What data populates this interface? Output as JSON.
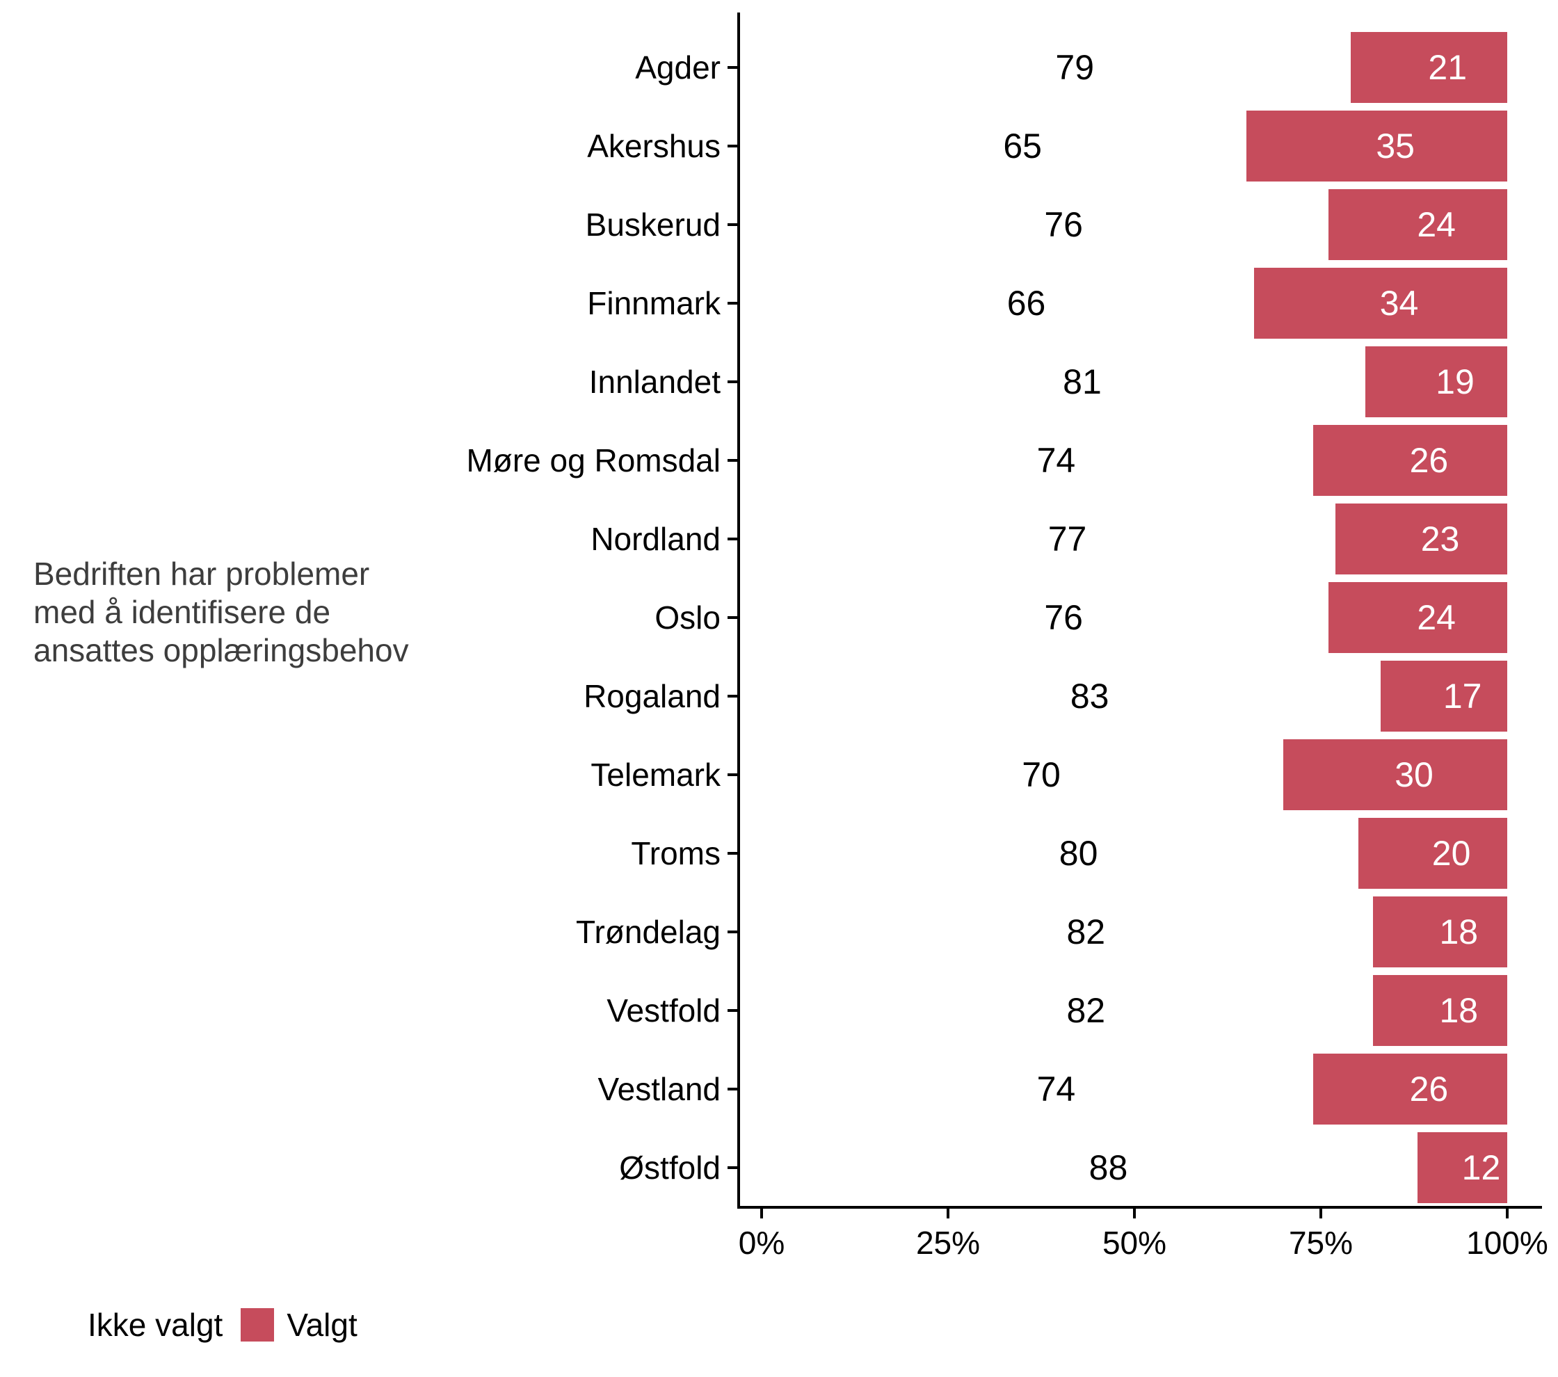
{
  "chart_data": {
    "type": "bar",
    "orientation": "horizontal",
    "stacked": true,
    "unit": "percent",
    "y_axis_title": "Bedriften har problemer\nmed å identifisere de\nansattes opplæringsbehov",
    "categories": [
      "Agder",
      "Akershus",
      "Buskerud",
      "Finnmark",
      "Innlandet",
      "Møre og Romsdal",
      "Nordland",
      "Oslo",
      "Rogaland",
      "Telemark",
      "Troms",
      "Trøndelag",
      "Vestfold",
      "Vestland",
      "Østfold"
    ],
    "series": [
      {
        "name": "Ikke valgt",
        "color": "#ffffff",
        "label_color": "#000000",
        "values": [
          79,
          65,
          76,
          66,
          81,
          74,
          77,
          76,
          83,
          70,
          80,
          82,
          82,
          74,
          88
        ]
      },
      {
        "name": "Valgt",
        "color": "#c64c5c",
        "label_color": "#ffffff",
        "values": [
          21,
          35,
          24,
          34,
          19,
          26,
          23,
          24,
          17,
          30,
          20,
          18,
          18,
          26,
          12
        ]
      }
    ],
    "x_ticks": [
      {
        "value": 0,
        "label": "0%"
      },
      {
        "value": 25,
        "label": "25%"
      },
      {
        "value": 50,
        "label": "50%"
      },
      {
        "value": 75,
        "label": "75%"
      },
      {
        "value": 100,
        "label": "100%"
      }
    ],
    "xlim": [
      0,
      100
    ],
    "grid": false,
    "value_label_nudge_pct": 2.5,
    "legend": {
      "position": "bottom-left",
      "items": [
        {
          "label": "Ikke valgt",
          "color": "#ffffff"
        },
        {
          "label": "Valgt",
          "color": "#c64c5c"
        }
      ]
    }
  },
  "colors": {
    "background": "#ffffff",
    "axis": "#000000",
    "axis_text": "#000000",
    "annotation_text": "#3d3d3d",
    "bar_fill": "#c64c5c"
  }
}
